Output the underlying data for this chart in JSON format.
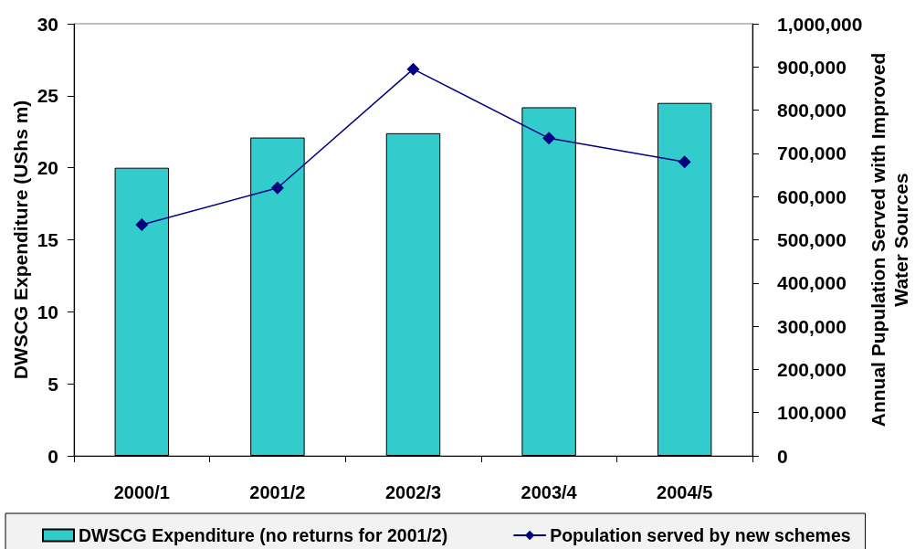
{
  "chart_data": {
    "type": "bar",
    "categories": [
      "2000/1",
      "2001/2",
      "2002/3",
      "2003/4",
      "2004/5"
    ],
    "series": [
      {
        "name": "DWSCG Expenditure (no returns for 2001/2)",
        "color": "#33cccc",
        "values": [
          20.0,
          22.1,
          22.4,
          24.2,
          24.5
        ]
      },
      {
        "name": "Population served by new schemes",
        "type": "line",
        "axis": "y2",
        "color": "#000080",
        "values": [
          535000,
          620000,
          895000,
          735000,
          680000
        ]
      }
    ],
    "ylabel": "DWSCG Expenditure (UShs m)",
    "y2label": "Annual Pupulation Served with Improved Water Sources",
    "ylim": [
      0,
      30
    ],
    "yticks": [
      0,
      5,
      10,
      15,
      20,
      25,
      30
    ],
    "y2lim": [
      0,
      1000000
    ],
    "y2ticks": [
      0,
      {
        "value": 100000,
        "label": "100,000"
      },
      {
        "value": 200000,
        "label": "200,000"
      },
      {
        "value": 300000,
        "label": "300,000"
      },
      {
        "value": 400000,
        "label": "400,000"
      },
      {
        "value": 500000,
        "label": "500,000"
      },
      {
        "value": 600000,
        "label": "600,000"
      },
      {
        "value": 700000,
        "label": "700,000"
      },
      {
        "value": 800000,
        "label": "800,000"
      },
      {
        "value": 900000,
        "label": "900,000"
      },
      {
        "value": 1000000,
        "label": "1,000,000"
      }
    ],
    "grid": false,
    "legend": "bottom",
    "marker": "diamond",
    "line_style": "solid"
  }
}
